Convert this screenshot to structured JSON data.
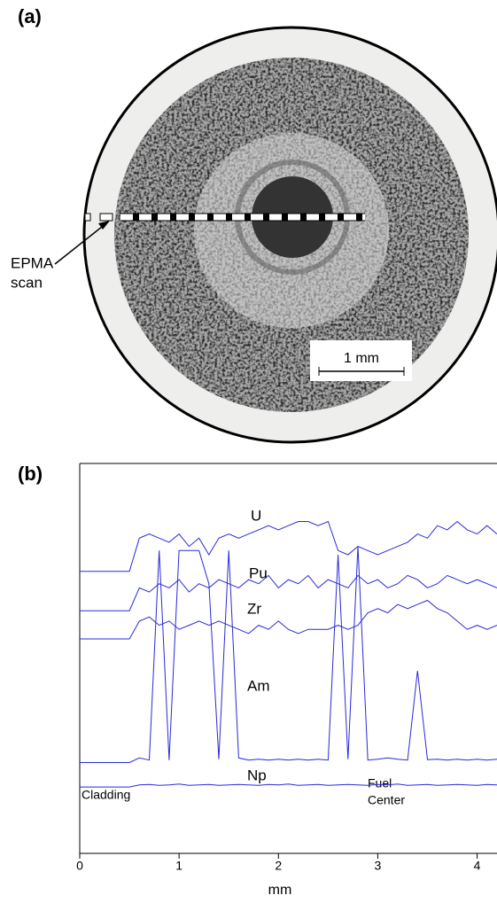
{
  "panel_a": {
    "label": "(a)",
    "annotation_lines": [
      "EPMA",
      "scan"
    ],
    "scale_bar": "1 mm"
  },
  "chart_data": {
    "type": "line",
    "panel_label": "(b)",
    "x_label": "mm",
    "annotations": {
      "left": "Cladding",
      "right_lines": [
        "Fuel",
        "Center"
      ]
    },
    "xlim": [
      0,
      4.2
    ],
    "xticks": [
      0,
      1,
      2,
      3,
      4
    ],
    "ylim": [
      6,
      100
    ],
    "x": [
      0,
      0.1,
      0.2,
      0.3,
      0.4,
      0.5,
      0.6,
      0.7,
      0.8,
      0.9,
      1,
      1.1,
      1.2,
      1.3,
      1.4,
      1.5,
      1.6,
      1.7,
      1.8,
      1.9,
      2,
      2.1,
      2.2,
      2.3,
      2.4,
      2.5,
      2.6,
      2.7,
      2.8,
      2.9,
      3,
      3.1,
      3.2,
      3.3,
      3.4,
      3.5,
      3.6,
      3.7,
      3.8,
      3.9,
      4,
      4.1,
      4.2
    ],
    "series": [
      {
        "name": "U",
        "color": "#2a2ad8",
        "values": [
          74,
          74,
          74,
          74,
          74,
          74,
          82,
          83,
          82,
          81,
          83,
          80,
          82,
          78,
          82,
          83,
          82,
          83,
          84,
          85,
          84,
          85,
          86,
          86,
          85,
          86,
          79,
          78,
          80,
          79,
          78,
          79,
          80,
          81,
          83,
          82,
          85,
          84,
          86,
          84,
          83,
          85,
          83
        ]
      },
      {
        "name": "Pu",
        "color": "#2a2ad8",
        "values": [
          64.5,
          64.5,
          64.5,
          64.5,
          64.5,
          64.5,
          70,
          69,
          71,
          70,
          72,
          69,
          71,
          70,
          72,
          71,
          70,
          72,
          71,
          73,
          70,
          72,
          71,
          73,
          70,
          72,
          71,
          70,
          73,
          71,
          72,
          70,
          71,
          73,
          72,
          70,
          71,
          73,
          72,
          71,
          72,
          71,
          70
        ]
      },
      {
        "name": "Zr",
        "color": "#2a2ad8",
        "values": [
          57.7,
          57.7,
          57.7,
          57.7,
          57.7,
          57.7,
          62,
          63,
          61,
          62,
          60,
          61,
          62,
          61,
          62,
          61,
          60,
          59,
          61,
          60,
          62,
          60,
          59,
          60,
          60,
          60,
          61,
          60,
          61,
          64,
          65,
          64,
          66,
          65,
          66,
          67,
          65,
          64,
          62,
          60,
          61,
          60,
          61
        ]
      },
      {
        "name": "Am",
        "color": "#2a2ad8",
        "values": [
          27.9,
          27.9,
          27.9,
          27.9,
          27.9,
          27.9,
          29,
          28.5,
          79,
          28.5,
          79,
          79,
          79,
          71,
          28.7,
          79,
          29,
          28.5,
          28.7,
          28.5,
          28.7,
          28.5,
          28.7,
          28.5,
          28.7,
          28.5,
          78,
          28.7,
          80,
          28.5,
          28.7,
          29,
          28.7,
          28.5,
          50,
          28.6,
          28.7,
          28.5,
          28.7,
          28.5,
          28.7,
          28.5,
          28.7
        ]
      },
      {
        "name": "Np",
        "color": "#2a2ad8",
        "values": [
          22,
          22,
          22,
          22,
          22,
          22,
          22.5,
          22.6,
          22.4,
          22.5,
          22.7,
          22.4,
          22.5,
          22.6,
          22.4,
          22.5,
          22.6,
          22.5,
          22.4,
          22.6,
          22.5,
          22.7,
          22.4,
          22.5,
          22.6,
          22.4,
          22.5,
          22.6,
          22.5,
          22.4,
          22.6,
          22.5,
          22.7,
          22.4,
          22.5,
          22.6,
          22.4,
          22.5,
          22.6,
          22.5,
          22.4,
          22.6,
          22.5
        ]
      }
    ]
  }
}
